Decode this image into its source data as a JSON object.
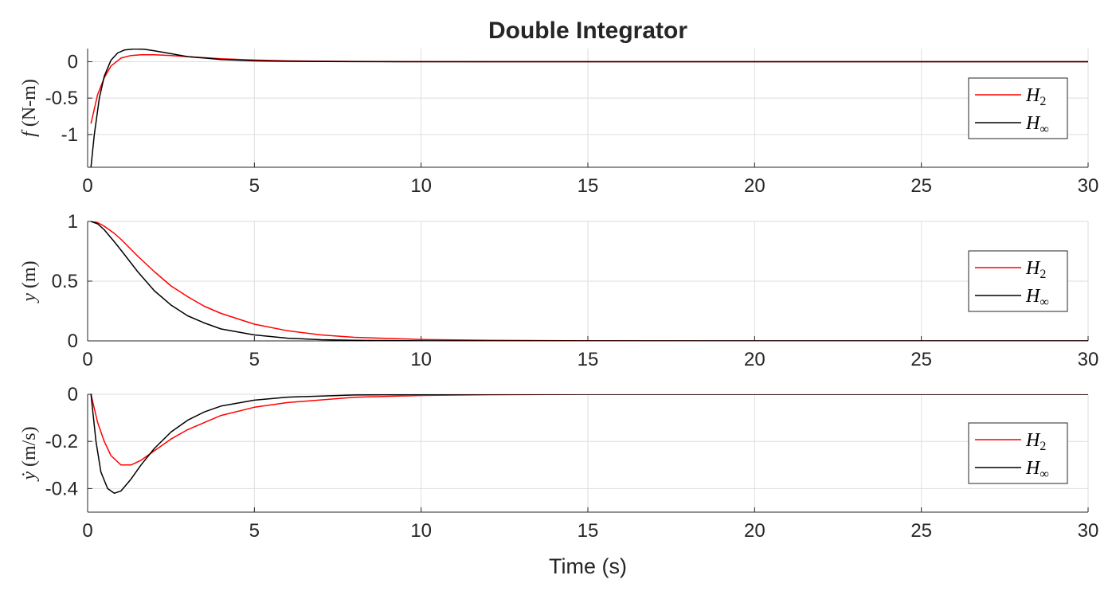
{
  "figure": {
    "title": "Double Integrator",
    "xlabel": "Time (s)"
  },
  "colors": {
    "h2": "#ff0000",
    "hinf": "#000000",
    "grid": "#dedede",
    "axis": "#262626"
  },
  "legend": {
    "placement": "right",
    "h2_base": "H",
    "h2_sub": "2",
    "hinf_base": "H",
    "hinf_sub": "∞"
  },
  "chart_data": [
    {
      "type": "line",
      "ylabel_symbol": "f",
      "ylabel_unit": "(N-m)",
      "xlim": [
        0,
        30
      ],
      "ylim": [
        -1.45,
        0.18
      ],
      "xticks": [
        0,
        5,
        10,
        15,
        20,
        25,
        30
      ],
      "yticks": [
        0,
        -0.5,
        -1
      ],
      "ytick_labels": [
        "0",
        "-0.5",
        "-1"
      ],
      "grid": true,
      "legend_position": "right",
      "series": [
        {
          "name": "H2",
          "x": [
            0.1,
            0.3,
            0.5,
            0.7,
            1.0,
            1.3,
            1.6,
            2.0,
            2.5,
            3.0,
            4.0,
            5.0,
            6.0,
            8.0,
            10.0,
            15.0,
            20.0,
            30.0
          ],
          "y": [
            -0.85,
            -0.45,
            -0.22,
            -0.06,
            0.05,
            0.085,
            0.095,
            0.095,
            0.085,
            0.07,
            0.04,
            0.022,
            0.012,
            0.004,
            0.001,
            0.0,
            0.0,
            0.0
          ]
        },
        {
          "name": "Hinf",
          "x": [
            0.1,
            0.2,
            0.35,
            0.5,
            0.7,
            0.9,
            1.1,
            1.4,
            1.7,
            2.0,
            2.5,
            3.0,
            4.0,
            5.0,
            6.0,
            8.0,
            10.0,
            15.0,
            20.0,
            30.0
          ],
          "y": [
            -1.45,
            -1.0,
            -0.5,
            -0.2,
            0.02,
            0.12,
            0.16,
            0.175,
            0.17,
            0.15,
            0.11,
            0.07,
            0.03,
            0.012,
            0.005,
            0.001,
            0.0,
            0.0,
            0.0,
            0.0
          ]
        }
      ]
    },
    {
      "type": "line",
      "ylabel_symbol": "y",
      "ylabel_unit": "(m)",
      "xlim": [
        0,
        30
      ],
      "ylim": [
        0,
        1
      ],
      "xticks": [
        0,
        5,
        10,
        15,
        20,
        25,
        30
      ],
      "yticks": [
        0,
        0.5,
        1
      ],
      "ytick_labels": [
        "0",
        "0.5",
        "1"
      ],
      "grid": true,
      "legend_position": "right",
      "series": [
        {
          "name": "H2",
          "x": [
            0.1,
            0.3,
            0.5,
            0.8,
            1.0,
            1.5,
            2.0,
            2.5,
            3.0,
            3.5,
            4.0,
            5.0,
            6.0,
            7.0,
            8.0,
            10.0,
            12.0,
            15.0,
            20.0,
            30.0
          ],
          "y": [
            1.0,
            0.99,
            0.96,
            0.9,
            0.85,
            0.71,
            0.58,
            0.46,
            0.37,
            0.29,
            0.23,
            0.14,
            0.085,
            0.05,
            0.03,
            0.012,
            0.005,
            0.001,
            0.0,
            0.0
          ]
        },
        {
          "name": "Hinf",
          "x": [
            0.1,
            0.3,
            0.5,
            0.8,
            1.0,
            1.5,
            2.0,
            2.5,
            3.0,
            3.5,
            4.0,
            5.0,
            6.0,
            7.0,
            8.0,
            10.0,
            12.0,
            15.0,
            20.0,
            30.0
          ],
          "y": [
            1.0,
            0.98,
            0.93,
            0.83,
            0.76,
            0.58,
            0.42,
            0.3,
            0.21,
            0.15,
            0.1,
            0.05,
            0.023,
            0.01,
            0.005,
            0.001,
            0.0,
            0.0,
            0.0,
            0.0
          ]
        }
      ]
    },
    {
      "type": "line",
      "ylabel_symbol": "ẏ",
      "ylabel_unit": "(m/s)",
      "xlim": [
        0,
        30
      ],
      "ylim": [
        -0.5,
        0
      ],
      "xticks": [
        0,
        5,
        10,
        15,
        20,
        25,
        30
      ],
      "yticks": [
        0,
        -0.2,
        -0.4
      ],
      "ytick_labels": [
        "0",
        "-0.2",
        "-0.4"
      ],
      "grid": true,
      "legend_position": "right",
      "series": [
        {
          "name": "H2",
          "x": [
            0.1,
            0.3,
            0.5,
            0.7,
            1.0,
            1.3,
            1.6,
            2.0,
            2.5,
            3.0,
            4.0,
            5.0,
            6.0,
            8.0,
            10.0,
            12.0,
            15.0,
            20.0,
            30.0
          ],
          "y": [
            0.0,
            -0.12,
            -0.2,
            -0.26,
            -0.3,
            -0.3,
            -0.28,
            -0.24,
            -0.19,
            -0.15,
            -0.09,
            -0.055,
            -0.035,
            -0.013,
            -0.005,
            -0.002,
            0.0,
            0.0,
            0.0
          ]
        },
        {
          "name": "Hinf",
          "x": [
            0.1,
            0.25,
            0.4,
            0.6,
            0.8,
            1.0,
            1.3,
            1.6,
            2.0,
            2.5,
            3.0,
            3.5,
            4.0,
            5.0,
            6.0,
            8.0,
            10.0,
            12.0,
            15.0,
            20.0,
            30.0
          ],
          "y": [
            0.0,
            -0.2,
            -0.33,
            -0.4,
            -0.42,
            -0.41,
            -0.36,
            -0.3,
            -0.23,
            -0.16,
            -0.11,
            -0.075,
            -0.05,
            -0.025,
            -0.012,
            -0.003,
            -0.001,
            0.0,
            0.0,
            0.0,
            0.0
          ]
        }
      ]
    }
  ]
}
